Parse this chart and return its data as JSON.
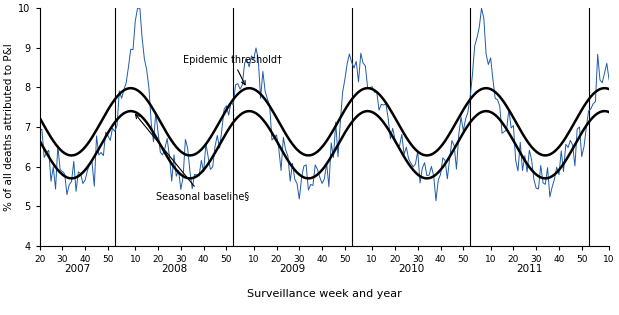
{
  "xlabel": "Surveillance week and year",
  "ylabel": "% of all deaths attributed to P&I",
  "ylim": [
    4,
    10
  ],
  "yticks": [
    4,
    5,
    6,
    7,
    8,
    9,
    10
  ],
  "season_line_color": "#1F5BA8",
  "baseline_color": "#000000",
  "threshold_color": "#000000",
  "annotation_epidemic": "Epidemic threshold†",
  "annotation_baseline": "Seasonal baseline§",
  "bg_color": "#FFFFFF",
  "baseline_lw": 1.8,
  "threshold_lw": 1.8,
  "data_lw": 0.7
}
